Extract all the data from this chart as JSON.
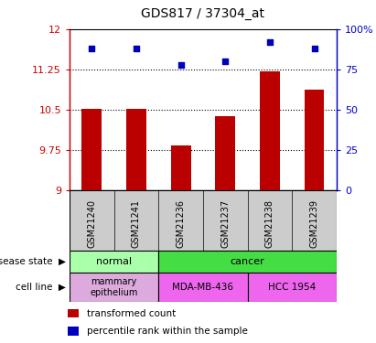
{
  "title": "GDS817 / 37304_at",
  "samples": [
    "GSM21240",
    "GSM21241",
    "GSM21236",
    "GSM21237",
    "GSM21238",
    "GSM21239"
  ],
  "transformed_counts": [
    10.52,
    10.52,
    9.83,
    10.38,
    11.22,
    10.88
  ],
  "percentile_ranks": [
    88,
    88,
    78,
    80,
    92,
    88
  ],
  "ymin": 9.0,
  "ymax": 12.0,
  "y2min": 0,
  "y2max": 100,
  "yticks": [
    9,
    9.75,
    10.5,
    11.25,
    12
  ],
  "ytick_labels": [
    "9",
    "9.75",
    "10.5",
    "11.25",
    "12"
  ],
  "y2ticks": [
    0,
    25,
    50,
    75,
    100
  ],
  "y2tick_labels": [
    "0",
    "25",
    "50",
    "75",
    "100%"
  ],
  "dotted_lines": [
    9.75,
    10.5,
    11.25
  ],
  "bar_color": "#bb0000",
  "dot_color": "#0000bb",
  "bar_width": 0.45,
  "disease_state_colors": {
    "normal": "#aaffaa",
    "cancer": "#44dd44"
  },
  "cell_line_colors": {
    "mammary epithelium": "#ddaadd",
    "MDA-MB-436": "#ee66ee",
    "HCC 1954": "#ee66ee"
  },
  "legend_items": [
    "transformed count",
    "percentile rank within the sample"
  ],
  "legend_colors": [
    "#bb0000",
    "#0000bb"
  ],
  "sample_bg_color": "#cccccc",
  "plot_bg_color": "#ffffff"
}
